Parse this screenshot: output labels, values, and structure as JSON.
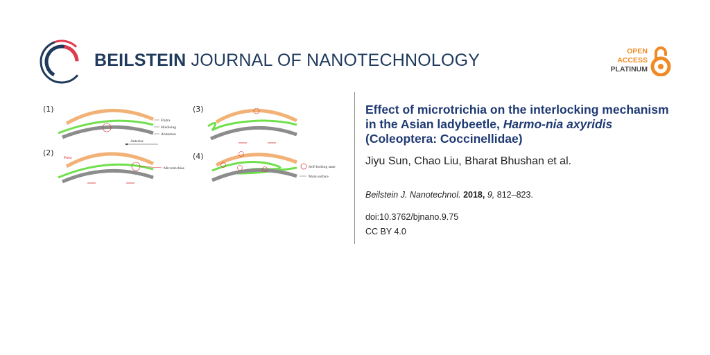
{
  "header": {
    "journal_bold": "BEILSTEIN",
    "journal_rest": "JOURNAL OF NANOTECHNOLOGY",
    "oa_line1": "OPEN",
    "oa_line2": "ACCESS",
    "oa_line3": "PLATINUM"
  },
  "figure": {
    "panel_labels": [
      "(1)",
      "(2)",
      "(3)",
      "(4)"
    ],
    "labels": {
      "elytra": "Elytra",
      "hindwing": "Hindwing",
      "abdomen": "Abdomen",
      "anterior": "Anterior",
      "press": "Press",
      "microtrichiae": "Microtrichiae",
      "self_locking": "Self-locking state",
      "main_surface": "Main surface"
    },
    "colors": {
      "elytra": "#f2b277",
      "hindwing": "#6fe04c",
      "abdomen": "#8c8c8c",
      "accent": "#d62a2a"
    }
  },
  "article": {
    "title_part1": "Effect of microtrichia on the interlocking mechanism in the Asian ladybeetle, ",
    "title_italic": "Harmo-nia axyridis",
    "title_part2": " (Coleoptera: Coccinellidae)",
    "authors": "Jiyu Sun, Chao Liu, Bharat Bhushan et al.",
    "journal_abbrev": "Beilstein J. Nanotechnol.",
    "year": "2018,",
    "volume": "9,",
    "pages": "812–823.",
    "doi": "doi:10.3762/bjnano.9.75",
    "license": "CC BY 4.0"
  }
}
